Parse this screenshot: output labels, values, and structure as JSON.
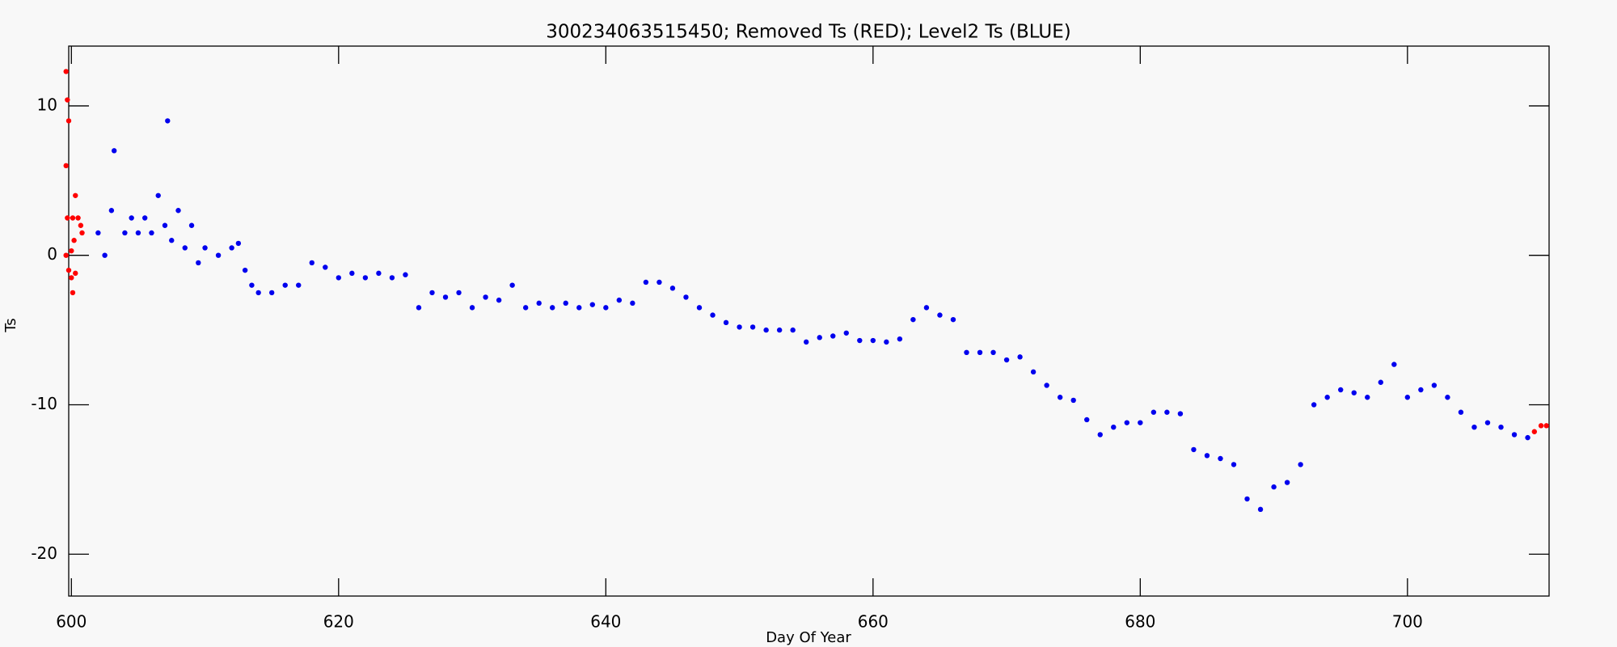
{
  "chart_data": {
    "type": "scatter",
    "title": "300234063515450; Removed Ts (RED); Level2 Ts (BLUE)",
    "x_label": "Day Of Year",
    "y_label": "Ts",
    "xlim": [
      599.8,
      710.6
    ],
    "ylim": [
      -22.8,
      14.0
    ],
    "xticks": [
      600,
      620,
      640,
      660,
      680,
      700
    ],
    "yticks": [
      -20,
      -10,
      0,
      10
    ],
    "series": [
      {
        "name": "Removed Ts",
        "color": "#ff0000",
        "x": [
          599.6,
          599.7,
          599.8,
          599.6,
          599.7,
          599.6,
          599.8,
          600.0,
          600.1,
          600.2,
          600.3,
          600.5,
          600.7,
          600.8,
          600.3,
          600.0,
          600.1,
          709.5,
          710.0,
          710.4
        ],
        "values": [
          12.3,
          10.4,
          9.0,
          6.0,
          2.5,
          0.0,
          -1.0,
          -1.5,
          -2.5,
          1.0,
          4.0,
          2.5,
          2.0,
          1.5,
          -1.2,
          0.3,
          2.5,
          -11.8,
          -11.4,
          -11.4
        ]
      },
      {
        "name": "Level2 Ts",
        "color": "#0000ee",
        "x": [
          602,
          602.5,
          603,
          603.2,
          604,
          604.5,
          605,
          605.5,
          606,
          606.5,
          607,
          607.2,
          607.5,
          608,
          608.5,
          609,
          609.5,
          610,
          611,
          612,
          612.5,
          613,
          613.5,
          614,
          615,
          616,
          617,
          618,
          619,
          620,
          621,
          622,
          623,
          624,
          625,
          626,
          627,
          628,
          629,
          630,
          631,
          632,
          633,
          634,
          635,
          636,
          637,
          638,
          639,
          640,
          641,
          642,
          643,
          644,
          645,
          646,
          647,
          648,
          649,
          650,
          651,
          652,
          653,
          654,
          655,
          656,
          657,
          658,
          659,
          660,
          661,
          662,
          663,
          664,
          665,
          666,
          667,
          668,
          669,
          670,
          671,
          672,
          673,
          674,
          675,
          676,
          677,
          678,
          679,
          680,
          681,
          682,
          683,
          684,
          685,
          686,
          687,
          688,
          689,
          690,
          691,
          692,
          693,
          694,
          695,
          696,
          697,
          698,
          699,
          700,
          701,
          702,
          703,
          704,
          705,
          706,
          707,
          708,
          709
        ],
        "values": [
          1.5,
          0,
          3,
          7,
          1.5,
          2.5,
          1.5,
          2.5,
          1.5,
          4,
          2,
          9,
          1,
          3,
          0.5,
          2,
          -0.5,
          0.5,
          0,
          0.5,
          0.8,
          -1,
          -2,
          -2.5,
          -2.5,
          -2,
          -2,
          -0.5,
          -0.8,
          -1.5,
          -1.2,
          -1.5,
          -1.2,
          -1.5,
          -1.3,
          -3.5,
          -2.5,
          -2.8,
          -2.5,
          -3.5,
          -2.8,
          -3,
          -2,
          -3.5,
          -3.2,
          -3.5,
          -3.2,
          -3.5,
          -3.3,
          -3.5,
          -3,
          -3.2,
          -1.8,
          -1.8,
          -2.2,
          -2.8,
          -3.5,
          -4,
          -4.5,
          -4.8,
          -4.8,
          -5,
          -5,
          -5,
          -5.8,
          -5.5,
          -5.4,
          -5.2,
          -5.7,
          -5.7,
          -5.8,
          -5.6,
          -4.3,
          -3.5,
          -4,
          -4.3,
          -6.5,
          -6.5,
          -6.5,
          -7,
          -6.8,
          -7.8,
          -8.7,
          -9.5,
          -9.7,
          -11,
          -12,
          -11.5,
          -11.2,
          -11.2,
          -10.5,
          -10.5,
          -10.6,
          -13,
          -13.4,
          -13.6,
          -14,
          -16.3,
          -17,
          -15.5,
          -15.2,
          -14,
          -10,
          -9.5,
          -9,
          -9.2,
          -9.5,
          -8.5,
          -7.3,
          -9.5,
          -9,
          -8.7,
          -9.5,
          -10.5,
          -11.5,
          -11.2,
          -11.5,
          -12,
          -12.2
        ]
      }
    ]
  }
}
